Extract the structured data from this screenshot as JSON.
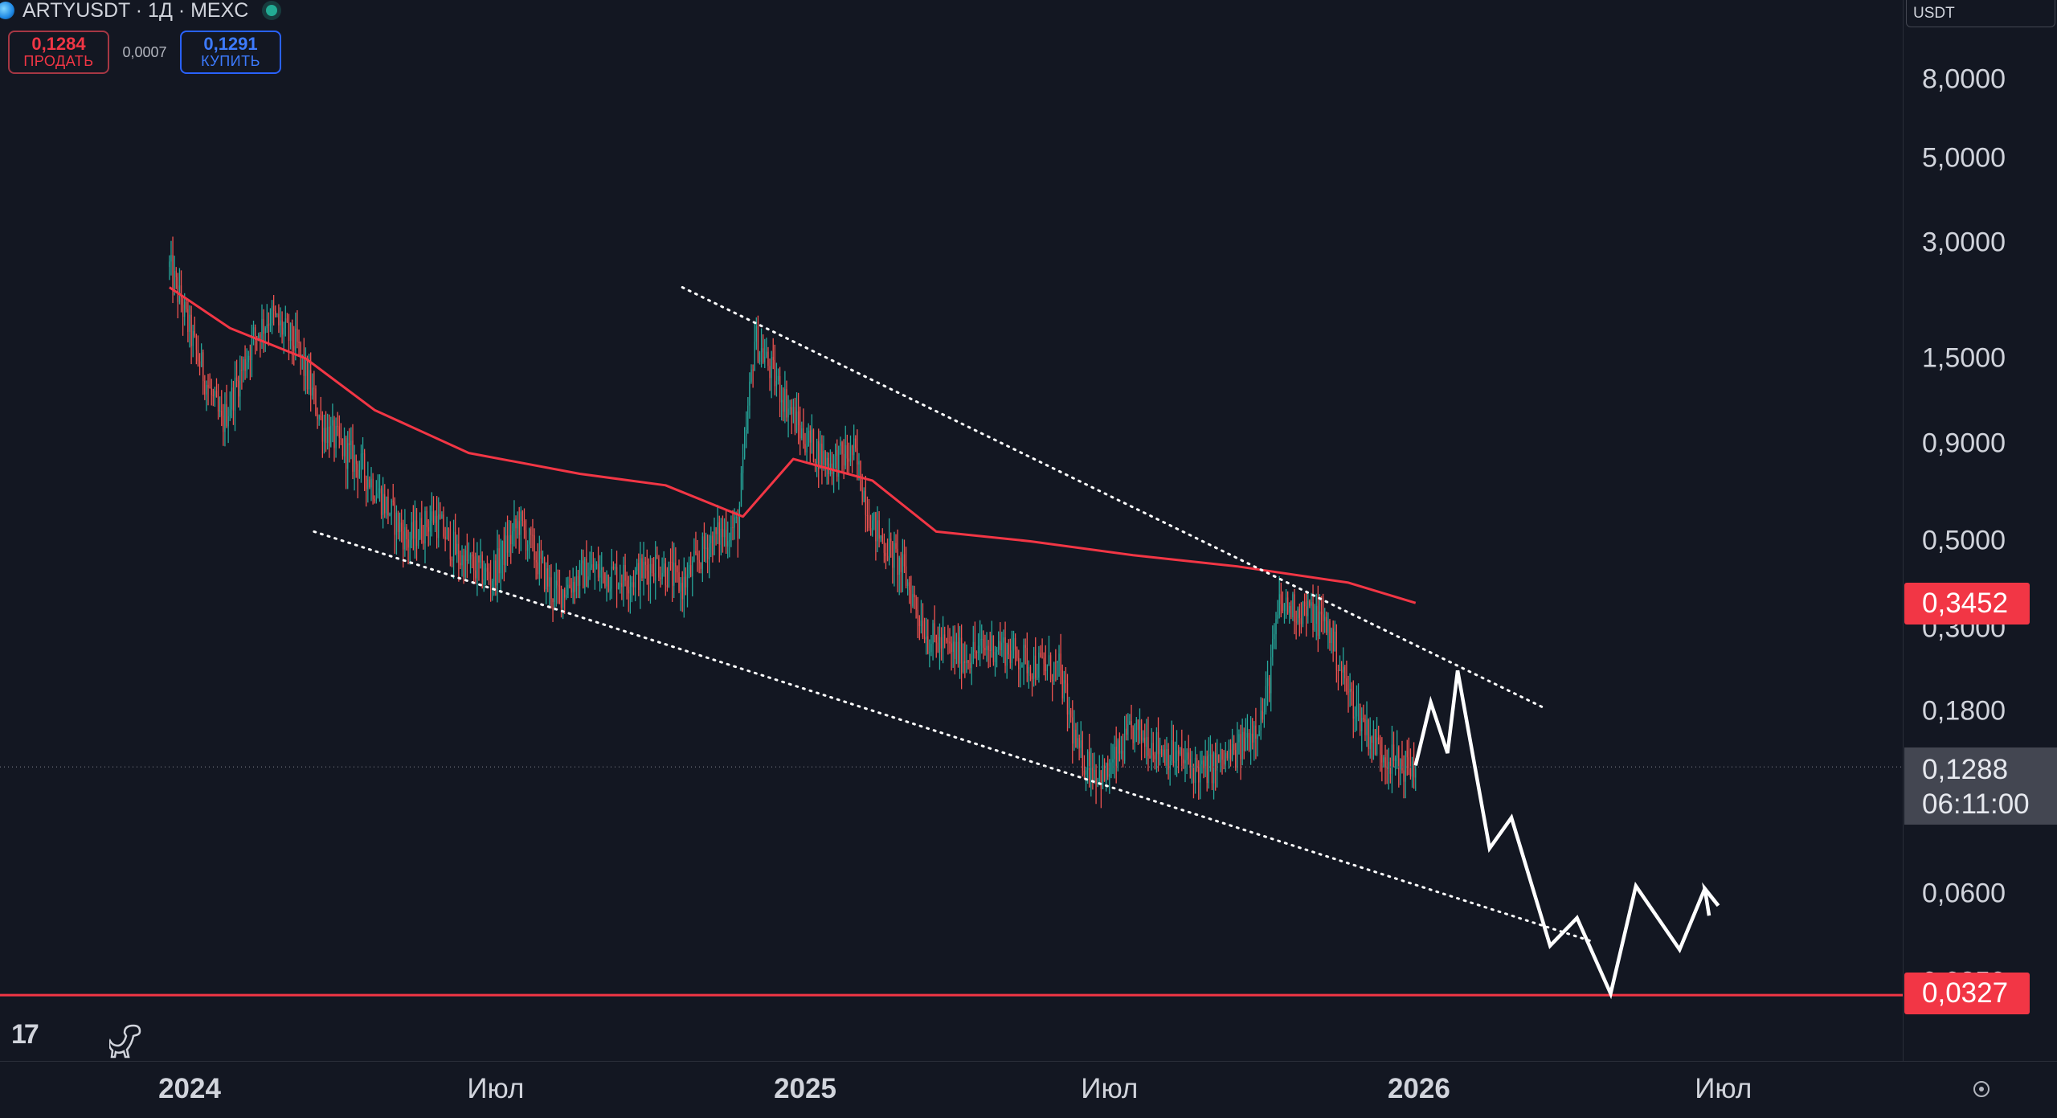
{
  "header": {
    "symbol_title": "ARTYUSDT · 1Д · MEXC",
    "sell_price": "0,1284",
    "sell_label": "ПРОДАТЬ",
    "spread": "0,0007",
    "buy_price": "0,1291",
    "buy_label": "КУПИТЬ"
  },
  "axis": {
    "currency": "USDT",
    "y_ticks": [
      "8,0000",
      "5,0000",
      "3,0000",
      "1,5000",
      "0,9000",
      "0,5000",
      "0,1800",
      "0,0600"
    ],
    "y_hidden_ticks": [
      "0,3000",
      "0,0350"
    ],
    "x_ticks": [
      "2024",
      "Июл",
      "2025",
      "Июл",
      "2026",
      "Июл"
    ],
    "ma_label": "0,3452",
    "level_label": "0,0327",
    "current_price": "0,1288",
    "countdown": "06:11:00"
  },
  "colors": {
    "background": "#131722",
    "ma_line": "#f23645",
    "up_candle": "#26a69a",
    "down_candle": "#ef5350",
    "projection": "#ffffff"
  },
  "chart_data": {
    "type": "candlestick",
    "title": "",
    "scale": "log",
    "x_axis": "date",
    "y_range": [
      0.028,
      10
    ],
    "grid": false,
    "price_path": [
      [
        "2023-12-20",
        2.6
      ],
      [
        "2023-12-24",
        2.3
      ],
      [
        "2024-01-05",
        1.55
      ],
      [
        "2024-01-20",
        1.0
      ],
      [
        "2024-01-28",
        1.25
      ],
      [
        "2024-02-08",
        1.7
      ],
      [
        "2024-02-18",
        1.95
      ],
      [
        "2024-03-05",
        1.6
      ],
      [
        "2024-03-20",
        1.0
      ],
      [
        "2024-04-15",
        0.75
      ],
      [
        "2024-05-10",
        0.5
      ],
      [
        "2024-05-25",
        0.58
      ],
      [
        "2024-06-10",
        0.45
      ],
      [
        "2024-06-28",
        0.4
      ],
      [
        "2024-07-15",
        0.56
      ],
      [
        "2024-08-05",
        0.36
      ],
      [
        "2024-08-25",
        0.42
      ],
      [
        "2024-09-20",
        0.4
      ],
      [
        "2024-10-05",
        0.44
      ],
      [
        "2024-10-20",
        0.38
      ],
      [
        "2024-11-05",
        0.5
      ],
      [
        "2024-11-22",
        0.55
      ],
      [
        "2024-12-02",
        1.7
      ],
      [
        "2024-12-15",
        1.3
      ],
      [
        "2024-12-30",
        0.95
      ],
      [
        "2025-01-15",
        0.8
      ],
      [
        "2025-01-30",
        0.85
      ],
      [
        "2025-02-10",
        0.55
      ],
      [
        "2025-02-28",
        0.42
      ],
      [
        "2025-03-15",
        0.28
      ],
      [
        "2025-04-05",
        0.25
      ],
      [
        "2025-04-25",
        0.27
      ],
      [
        "2025-05-15",
        0.24
      ],
      [
        "2025-06-01",
        0.23
      ],
      [
        "2025-06-12",
        0.14
      ],
      [
        "2025-06-28",
        0.12
      ],
      [
        "2025-07-15",
        0.16
      ],
      [
        "2025-08-05",
        0.14
      ],
      [
        "2025-08-25",
        0.125
      ],
      [
        "2025-09-15",
        0.14
      ],
      [
        "2025-10-01",
        0.18
      ],
      [
        "2025-10-10",
        0.34
      ],
      [
        "2025-10-25",
        0.33
      ],
      [
        "2025-11-08",
        0.3
      ],
      [
        "2025-11-20",
        0.2
      ],
      [
        "2025-12-05",
        0.15
      ],
      [
        "2025-12-15",
        0.135
      ],
      [
        "2025-12-22",
        0.13
      ],
      [
        "2025-12-30",
        0.1288
      ]
    ],
    "moving_average": [
      [
        "2023-12-20",
        2.3
      ],
      [
        "2024-01-25",
        1.8
      ],
      [
        "2024-03-10",
        1.5
      ],
      [
        "2024-04-20",
        1.1
      ],
      [
        "2024-06-15",
        0.85
      ],
      [
        "2024-08-20",
        0.75
      ],
      [
        "2024-10-10",
        0.7
      ],
      [
        "2024-11-25",
        0.58
      ],
      [
        "2024-12-25",
        0.82
      ],
      [
        "2025-02-10",
        0.72
      ],
      [
        "2025-03-20",
        0.53
      ],
      [
        "2025-05-15",
        0.5
      ],
      [
        "2025-07-15",
        0.46
      ],
      [
        "2025-09-15",
        0.43
      ],
      [
        "2025-11-20",
        0.39
      ],
      [
        "2025-12-30",
        0.3452
      ]
    ],
    "trendlines": [
      {
        "style": "dotted",
        "from": [
          "2024-10-20",
          2.3
        ],
        "to": [
          "2026-03-15",
          0.185
        ]
      },
      {
        "style": "dotted",
        "from": [
          "2024-03-15",
          0.53
        ],
        "to": [
          "2026-04-15",
          0.045
        ]
      }
    ],
    "horizontal_level": 0.0327,
    "projection_path": [
      [
        "2025-12-30",
        0.13
      ],
      [
        "2026-01-08",
        0.19
      ],
      [
        "2026-01-18",
        0.14
      ],
      [
        "2026-01-24",
        0.23
      ],
      [
        "2026-02-12",
        0.079
      ],
      [
        "2026-02-25",
        0.095
      ],
      [
        "2026-03-20",
        0.044
      ],
      [
        "2026-04-05",
        0.052
      ],
      [
        "2026-04-25",
        0.033
      ],
      [
        "2026-05-10",
        0.063
      ],
      [
        "2026-06-05",
        0.043
      ],
      [
        "2026-06-20",
        0.062
      ],
      [
        "2026-06-28",
        0.056
      ]
    ]
  }
}
